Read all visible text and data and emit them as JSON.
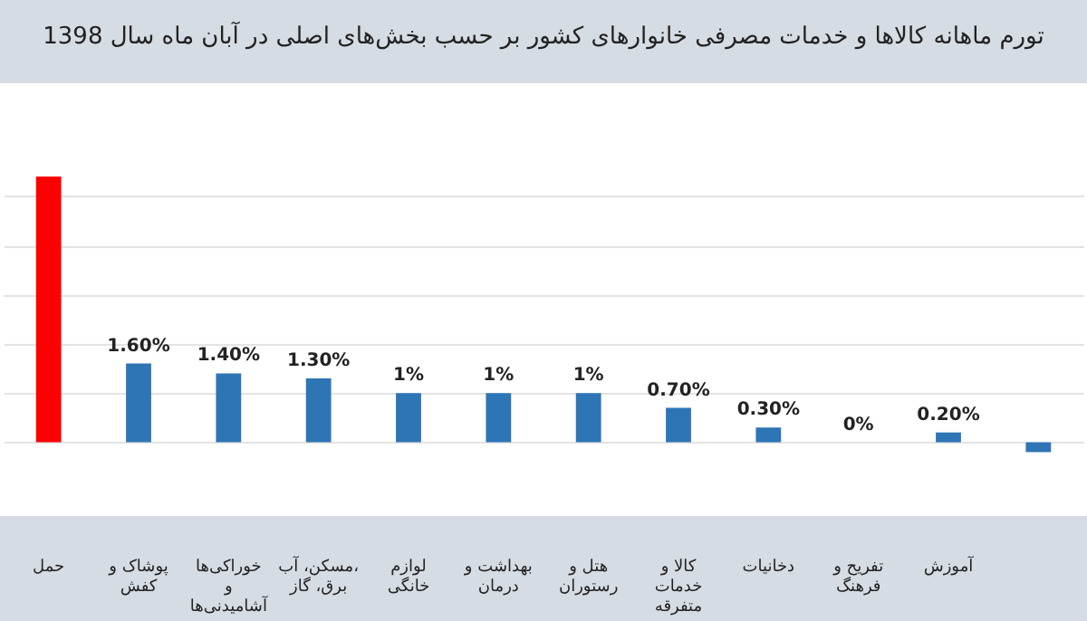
{
  "chart_data": {
    "type": "bar",
    "title": "تورم ماهانه کالاها و خدمات مصرفی خانوارهای کشور بر حسب بخش‌های اصلی در آبان ماه سال 1398",
    "categories": [
      "حمل",
      "پوشاک و کفش",
      "خوراکی‌ها و آشامیدنی‌ها",
      "مسکن، آب، برق، گاز",
      "لوازم خانگی",
      "بهداشت و درمان",
      "هتل و رستوران",
      "کالا و خدمات متفرقه",
      "دخانیات",
      "تفریح و فرهنگ",
      "آموزش",
      null
    ],
    "values": [
      5.4,
      1.6,
      1.4,
      1.3,
      1,
      1,
      1,
      0.7,
      0.3,
      0,
      0.2,
      -0.2
    ],
    "colors": [
      "#ff0000",
      "#2e75b6",
      "#2e75b6",
      "#2e75b6",
      "#2e75b6",
      "#2e75b6",
      "#2e75b6",
      "#2e75b6",
      "#2e75b6",
      "#2e75b6",
      "#2e75b6",
      "#2e75b6"
    ],
    "value_labels": [
      null,
      "1.60%",
      "1.40%",
      "1.30%",
      "1%",
      "1%",
      "1%",
      "0.70%",
      "0.30%",
      "0%",
      "0.20%",
      null
    ],
    "yticks": [
      {
        "value": 0,
        "label": null
      },
      {
        "value": 1,
        "label": null
      },
      {
        "value": 2,
        "label": null
      },
      {
        "value": 3,
        "label": null
      },
      {
        "value": 4,
        "label": null
      },
      {
        "value": 5,
        "label": null
      }
    ],
    "tick_labels": "x",
    "grid": "y"
  }
}
